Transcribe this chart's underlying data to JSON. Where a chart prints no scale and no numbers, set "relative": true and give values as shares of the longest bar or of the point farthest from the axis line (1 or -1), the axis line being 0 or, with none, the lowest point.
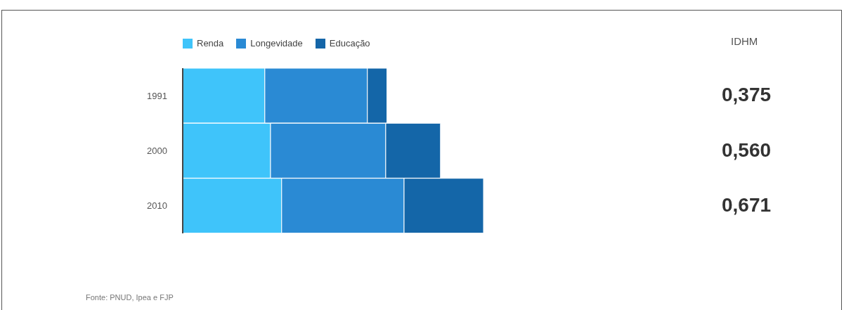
{
  "chart_data": {
    "type": "bar",
    "orientation": "horizontal",
    "stacked": true,
    "relative": true,
    "legend": "top left",
    "categories": [
      "1991",
      "2000",
      "2010"
    ],
    "series": [
      {
        "name": "Renda",
        "color": "#3fc4fa",
        "values": [
          0.273,
          0.292,
          0.329
        ]
      },
      {
        "name": "Longevidade",
        "color": "#2a8ad4",
        "values": [
          0.341,
          0.383,
          0.407
        ]
      },
      {
        "name": "Educação",
        "color": "#1466a8",
        "values": [
          0.065,
          0.182,
          0.264
        ]
      }
    ],
    "annotations": [
      "IDHM",
      "0,375",
      "0,560",
      "0,671",
      "Fonte: PNUD, Ipea e FJP"
    ]
  }
}
